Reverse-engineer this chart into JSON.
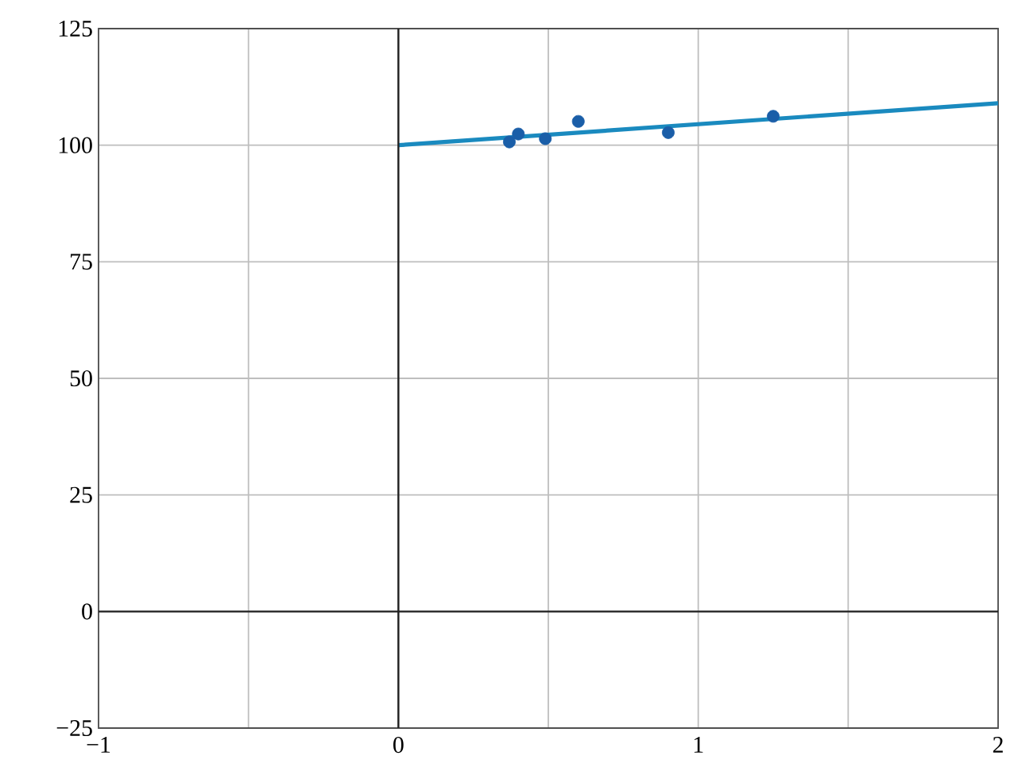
{
  "chart_data": {
    "type": "scatter",
    "series": [
      {
        "color": "#1a5ea8",
        "marker": "circle",
        "x": [
          0.37,
          0.4,
          0.49,
          0.6,
          0.9,
          1.25
        ],
        "values": [
          100.7,
          102.4,
          101.4,
          105.1,
          102.7,
          106.2
        ]
      },
      {
        "type": "line",
        "color": "#1a8abf",
        "marker": "none",
        "x": [
          0,
          2
        ],
        "values": [
          100,
          109
        ]
      }
    ],
    "xlim": [
      -1,
      2
    ],
    "ylim": [
      -25,
      125
    ],
    "xticks": [
      {
        "value": -1,
        "label": "−1"
      },
      {
        "value": -0.5,
        "label": null
      },
      0,
      {
        "value": 0.5,
        "label": null
      },
      1,
      {
        "value": 1.5,
        "label": null
      },
      2
    ],
    "yticks": [
      {
        "value": -25,
        "label": "−25"
      },
      0,
      25,
      50,
      75,
      100,
      125
    ],
    "grid": true
  }
}
